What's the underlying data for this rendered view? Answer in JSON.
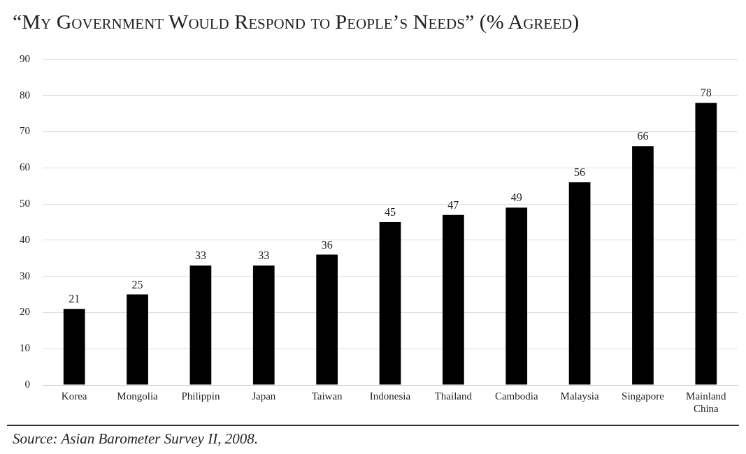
{
  "chart_data": {
    "type": "bar",
    "title": "“My Government Would Respond to People’s Needs” (% Agreed)",
    "categories": [
      "Korea",
      "Mongolia",
      "Philippin",
      "Japan",
      "Taiwan",
      "Indonesia",
      "Thailand",
      "Cambodia",
      "Malaysia",
      "Singapore",
      "Mainland China"
    ],
    "values": [
      21,
      25,
      33,
      33,
      36,
      45,
      47,
      49,
      56,
      66,
      78
    ],
    "color": "#000000",
    "ylim": [
      0,
      90
    ],
    "yticks": [
      0,
      10,
      20,
      30,
      40,
      50,
      60,
      70,
      80,
      90
    ],
    "grid": "y",
    "data_labels": true,
    "legend": false,
    "annotations": [
      "Source: Asian Barometer Survey II, 2008."
    ]
  }
}
